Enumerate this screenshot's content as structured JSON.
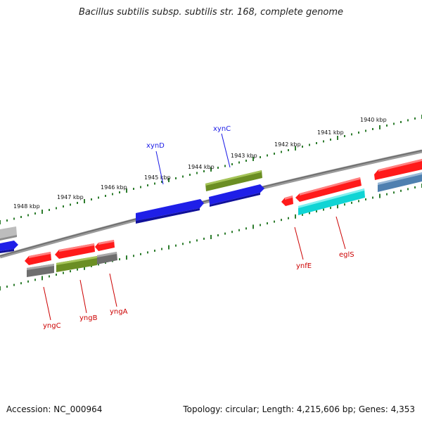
{
  "title": "Bacillus subtilis subsp. subtilis str. 168, complete genome",
  "footer": {
    "accession": "Accession: NC_000964",
    "summary": "Topology: circular; Length: 4,215,606 bp; Genes: 4,353"
  },
  "colors": {
    "backbone": "#8a8a8a",
    "ticks": "#2e7d2e",
    "red": "#ff1a1a",
    "blue": "#1f1fe8",
    "green": "#6b8e23",
    "gray": "#6e6e6e",
    "lightgray": "#bdbdbd",
    "cyan": "#10d4d4",
    "steelblue": "#4f80b0",
    "label_forward": "#1a1ae6",
    "label_reverse": "#cc0000"
  },
  "kbp_labels": [
    "1940 kbp",
    "1941 kbp",
    "1942 kbp",
    "1943 kbp",
    "1944 kbp",
    "1945 kbp",
    "1946 kbp",
    "1947 kbp",
    "1948 kbp"
  ],
  "gene_labels": [
    {
      "name": "xynD",
      "strand": "forward"
    },
    {
      "name": "xynC",
      "strand": "forward"
    },
    {
      "name": "yngC",
      "strand": "reverse"
    },
    {
      "name": "yngB",
      "strand": "reverse"
    },
    {
      "name": "yngA",
      "strand": "reverse"
    },
    {
      "name": "ynfE",
      "strand": "reverse"
    },
    {
      "name": "eglS",
      "strand": "reverse"
    }
  ]
}
